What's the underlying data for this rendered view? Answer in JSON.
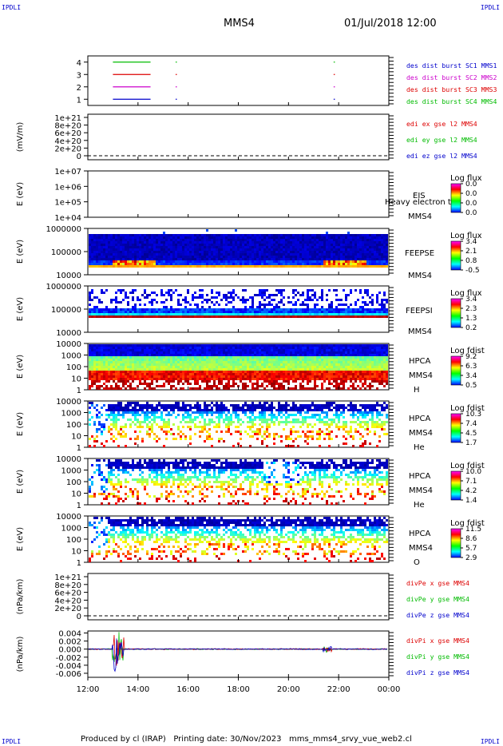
{
  "corners": {
    "tl": "IPDLI",
    "tr": "IPDLI",
    "bl": "IPDLI",
    "br": "IPDLI"
  },
  "header": {
    "spacecraft": "MMS4",
    "datetime": "01/Jul/2018 12:00"
  },
  "footer": {
    "text": "Produced by cl (IRAP)   Printing date: 30/Nov/2023   mms_mms4_srvy_vue_web2.cl"
  },
  "colors": {
    "blue": "#0000cc",
    "red": "#dd0000",
    "magenta": "#cc00cc",
    "green": "#00bb00"
  },
  "chart_data": [
    {
      "type": "line",
      "ylim": [
        0.5,
        4.5
      ],
      "yticks": [
        "4",
        "3",
        "2",
        "1"
      ],
      "legend": [
        {
          "name": "des dist burst SC1 MMS1",
          "color": "#0000cc"
        },
        {
          "name": "des dist burst SC2 MMS2",
          "color": "#cc00cc"
        },
        {
          "name": "des dist burst SC3 MMS3",
          "color": "#dd0000"
        },
        {
          "name": "des dist burst SC4 MMS4",
          "color": "#00bb00"
        }
      ],
      "series": [
        {
          "level": 4,
          "color": "#00bb00",
          "segments": [
            [
              13.0,
              14.5
            ],
            [
              15.5,
              15.55
            ],
            [
              21.8,
              21.85
            ]
          ]
        },
        {
          "level": 3,
          "color": "#dd0000",
          "segments": [
            [
              13.0,
              14.5
            ],
            [
              15.5,
              15.55
            ],
            [
              21.8,
              21.85
            ]
          ]
        },
        {
          "level": 2,
          "color": "#cc00cc",
          "segments": [
            [
              13.0,
              14.5
            ],
            [
              15.5,
              15.55
            ],
            [
              21.8,
              21.85
            ]
          ]
        },
        {
          "level": 1,
          "color": "#0000cc",
          "segments": [
            [
              13.0,
              14.5
            ],
            [
              15.5,
              15.55
            ],
            [
              21.8,
              21.85
            ]
          ]
        }
      ]
    },
    {
      "type": "line",
      "ylabel": "(mV/m)",
      "yticks": [
        "1e+21",
        "8e+20",
        "6e+20",
        "4e+20",
        "2e+20",
        "0"
      ],
      "legend": [
        {
          "name": "edi ex gse l2 MMS4",
          "color": "#dd0000"
        },
        {
          "name": "edi ey gse l2 MMS4",
          "color": "#00bb00"
        },
        {
          "name": "edi ez gse l2 MMS4",
          "color": "#0000cc"
        }
      ]
    },
    {
      "type": "heatmap",
      "ylabel": "E (eV)",
      "yticks": [
        "1e+07",
        "1e+06",
        "1e+05",
        "1e+04"
      ],
      "instrument": "EIS",
      "subtitle": "MMS4",
      "overlay": "Heavy electron to",
      "colorbar": {
        "title": "Log flux",
        "ticks": [
          "0.0",
          "0.0",
          "0.0",
          "0.0"
        ]
      }
    },
    {
      "type": "heatmap",
      "ylabel": "E (eV)",
      "yticks": [
        "1000000",
        "100000",
        "10000"
      ],
      "instrument": "FEEPSE",
      "subtitle": "MMS4",
      "colorbar": {
        "title": "Log flux",
        "ticks": [
          "3.4",
          "2.1",
          "0.8",
          "-0.5"
        ]
      }
    },
    {
      "type": "heatmap",
      "ylabel": "E (eV)",
      "yticks": [
        "1000000",
        "100000",
        "10000"
      ],
      "instrument": "FEEPSI",
      "subtitle": "MMS4",
      "colorbar": {
        "title": "Log flux",
        "ticks": [
          "3.4",
          "2.3",
          "1.3",
          "0.2"
        ]
      }
    },
    {
      "type": "heatmap",
      "ylabel": "E (eV)",
      "yticks": [
        "10000",
        "1000",
        "100",
        "10",
        "1"
      ],
      "instrument": "HPCA",
      "subtitle": "MMS4",
      "species": "H",
      "colorbar": {
        "title": "Log fdist",
        "ticks": [
          "9.2",
          "6.3",
          "3.4",
          "0.5"
        ]
      }
    },
    {
      "type": "heatmap",
      "ylabel": "E (eV)",
      "yticks": [
        "10000",
        "1000",
        "100",
        "10",
        "1"
      ],
      "instrument": "HPCA",
      "subtitle": "MMS4",
      "species": "He",
      "colorbar": {
        "title": "Log fdist",
        "ticks": [
          "10.3",
          "7.4",
          "4.5",
          "1.7"
        ]
      }
    },
    {
      "type": "heatmap",
      "ylabel": "E (eV)",
      "yticks": [
        "10000",
        "1000",
        "100",
        "10",
        "1"
      ],
      "instrument": "HPCA",
      "subtitle": "MMS4",
      "species": "He",
      "colorbar": {
        "title": "Log fdist",
        "ticks": [
          "10.0",
          "7.1",
          "4.2",
          "1.4"
        ]
      }
    },
    {
      "type": "heatmap",
      "ylabel": "E (eV)",
      "yticks": [
        "10000",
        "1000",
        "100",
        "10",
        "1"
      ],
      "instrument": "HPCA",
      "subtitle": "MMS4",
      "species": "O",
      "colorbar": {
        "title": "Log fdist",
        "ticks": [
          "11.5",
          "8.6",
          "5.7",
          "2.9"
        ]
      }
    },
    {
      "type": "line",
      "ylabel": "(nPa/km)",
      "yticks": [
        "1e+21",
        "8e+20",
        "6e+20",
        "4e+20",
        "2e+20",
        "0"
      ],
      "legend": [
        {
          "name": "divPe x gse MMS4",
          "color": "#dd0000"
        },
        {
          "name": "divPe y gse MMS4",
          "color": "#00bb00"
        },
        {
          "name": "divPe z gse MMS4",
          "color": "#0000cc"
        }
      ]
    },
    {
      "type": "line",
      "ylabel": "(nPa/km)",
      "yticks": [
        "0.004",
        "0.002",
        "0.000",
        "-0.002",
        "-0.004",
        "-0.006"
      ],
      "ylim": [
        -0.007,
        0.0045
      ],
      "legend": [
        {
          "name": "divPi x gse MMS4",
          "color": "#dd0000"
        },
        {
          "name": "divPi y gse MMS4",
          "color": "#00bb00"
        },
        {
          "name": "divPi z gse MMS4",
          "color": "#0000cc"
        }
      ]
    }
  ],
  "xaxis": {
    "range_hours": [
      12,
      24
    ],
    "ticks": [
      "12:00",
      "14:00",
      "16:00",
      "18:00",
      "20:00",
      "22:00",
      "00:00"
    ]
  }
}
